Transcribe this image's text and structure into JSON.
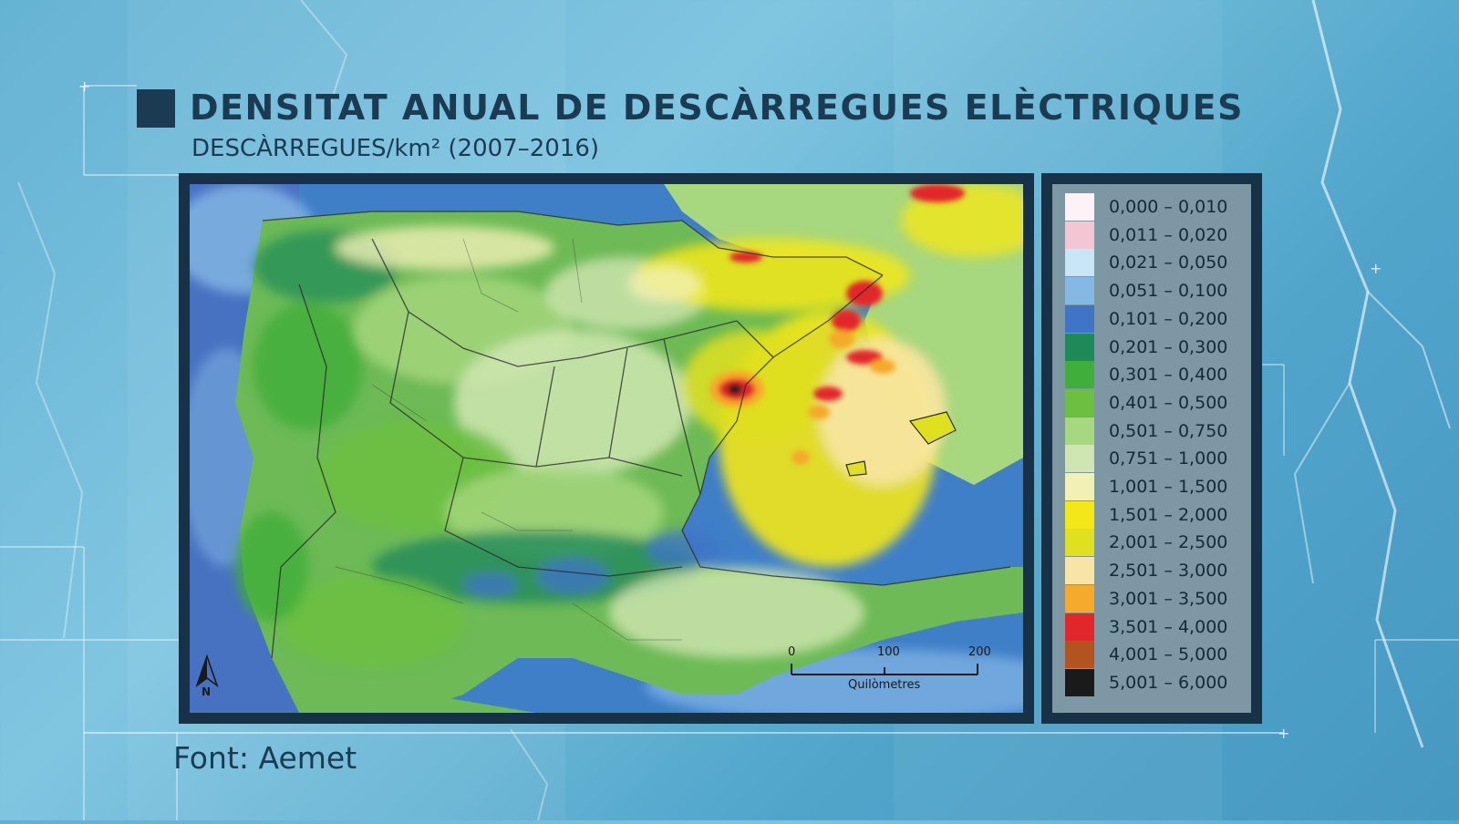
{
  "header": {
    "title": "DENSITAT ANUAL DE DESCÀRREGUES ELÈCTRIQUES",
    "subtitle": "DESCÀRREGUES/km² (2007–2016)"
  },
  "map": {
    "north_label": "N",
    "scale": {
      "ticks": [
        "0",
        "100",
        "200"
      ],
      "unit_label": "Quilòmetres"
    },
    "colors": {
      "sea": "#3f7fc8",
      "land_base": "#6dba56"
    }
  },
  "legend": {
    "items": [
      {
        "label": "0,000 – 0,010",
        "color": "#fdf3f6"
      },
      {
        "label": "0,011 – 0,020",
        "color": "#f4c6d4"
      },
      {
        "label": "0,021 – 0,050",
        "color": "#c9e6f7"
      },
      {
        "label": "0,051 – 0,100",
        "color": "#86b8e6"
      },
      {
        "label": "0,101 – 0,200",
        "color": "#3f74c6"
      },
      {
        "label": "0,201 – 0,300",
        "color": "#1e8a5a"
      },
      {
        "label": "0,301 – 0,400",
        "color": "#3fae3a"
      },
      {
        "label": "0,401 – 0,500",
        "color": "#6cc040"
      },
      {
        "label": "0,501 – 0,750",
        "color": "#a7d77e"
      },
      {
        "label": "0,751 – 1,000",
        "color": "#d0e6b2"
      },
      {
        "label": "1,001 – 1,500",
        "color": "#f1f0b5"
      },
      {
        "label": "1,501 – 2,000",
        "color": "#f3e71a"
      },
      {
        "label": "2,001 – 2,500",
        "color": "#dfe01f"
      },
      {
        "label": "2,501 – 3,000",
        "color": "#f8e4a4"
      },
      {
        "label": "3,001 – 3,500",
        "color": "#f6a92a"
      },
      {
        "label": "3,501 – 4,000",
        "color": "#e2262a"
      },
      {
        "label": "4,001 – 5,000",
        "color": "#b25320"
      },
      {
        "label": "5,001 – 6,000",
        "color": "#1a1a1a"
      }
    ]
  },
  "footer": {
    "source": "Font: Aemet"
  }
}
